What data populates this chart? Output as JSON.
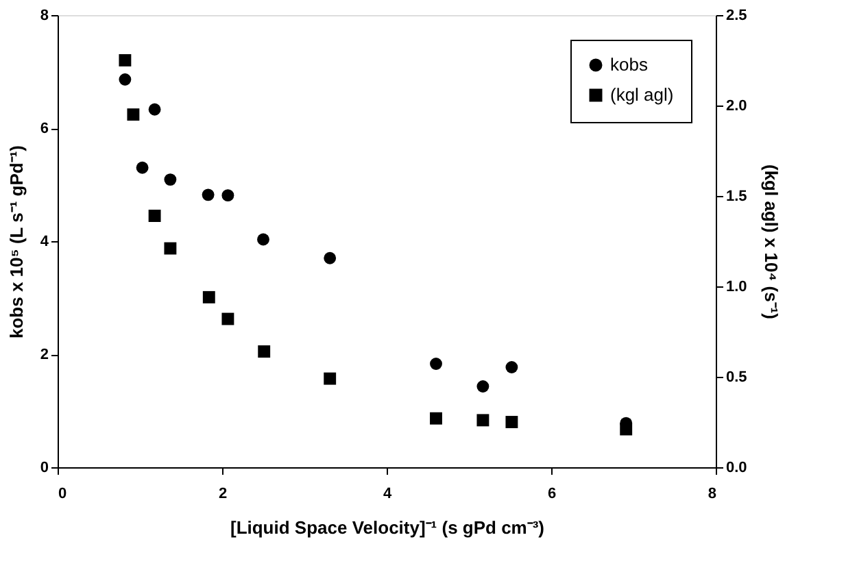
{
  "chart_data": {
    "type": "scatter",
    "xlabel": "[Liquid Space Velocity]⁻¹ (s gPd cm⁻³)",
    "ylabel": "kobs x 10⁵ (L s⁻¹ gPd⁻¹)",
    "y2label": "(kgl agl) x 10⁴ (s⁻¹)",
    "xlim": [
      0,
      8
    ],
    "xticks": [
      0,
      2,
      4,
      6,
      8
    ],
    "ylim": [
      0,
      8
    ],
    "yticks": [
      0,
      2,
      4,
      6,
      8
    ],
    "y2lim": [
      0,
      2.5
    ],
    "y2ticks": [
      {
        "value": 0,
        "label": "0.0"
      },
      0.5,
      {
        "value": 1,
        "label": "1.0"
      },
      1.5,
      {
        "value": 2,
        "label": "2.0"
      },
      2.5
    ],
    "grid": false,
    "legend": "top right",
    "series": [
      {
        "name": "kobs",
        "color": "#000000",
        "marker": "circle",
        "x": [
          0.82,
          1.18,
          1.03,
          1.37,
          1.83,
          2.07,
          2.5,
          3.31,
          4.6,
          5.17,
          5.52,
          6.91
        ],
        "values": [
          6.86,
          6.33,
          5.3,
          5.09,
          4.82,
          4.81,
          4.03,
          3.7,
          1.83,
          1.43,
          1.77,
          0.78
        ]
      },
      {
        "name": "(kgl agl)",
        "color": "#000000",
        "marker": "square",
        "axis": "y2",
        "x": [
          0.82,
          0.92,
          1.18,
          1.37,
          1.84,
          2.07,
          2.51,
          3.31,
          4.6,
          5.17,
          5.52,
          6.91
        ],
        "values": [
          2.25,
          1.95,
          1.39,
          1.21,
          0.94,
          0.82,
          0.64,
          0.49,
          0.27,
          0.26,
          0.25,
          0.21
        ]
      }
    ]
  }
}
